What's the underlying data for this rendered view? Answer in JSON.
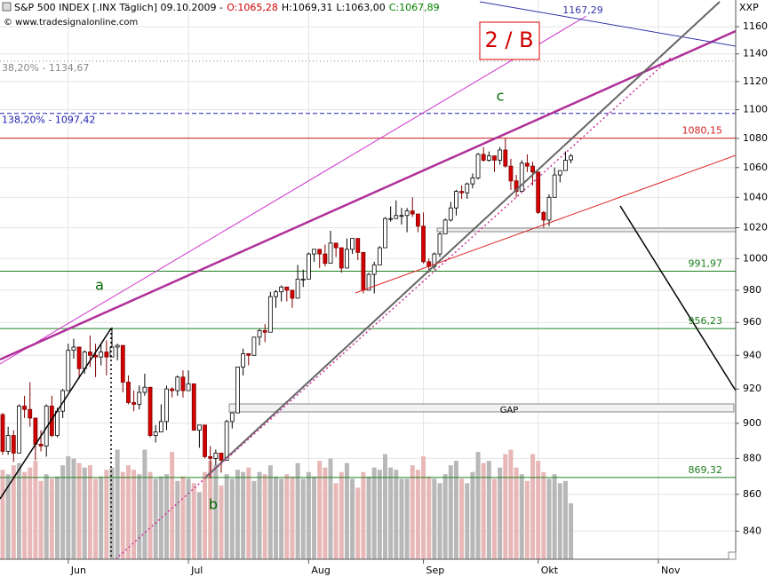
{
  "chart_data": {
    "type": "candlestick",
    "title": "S&P 500 INDEX [.INX Täglich] 09.10.2009 -",
    "ohlc_text": {
      "open": "O:1065,28",
      "high": "H:1069,31",
      "low": "L:1063,00",
      "close": "C:1067,89"
    },
    "source": "© www.tradesignalonline.com",
    "y_axis_label": "XXP",
    "log_scale": true,
    "grid": true,
    "ylim": [
      825,
      1180
    ],
    "yticks": [
      840,
      860,
      880,
      900,
      920,
      940,
      960,
      980,
      1000,
      1020,
      1040,
      1060,
      1080,
      1100,
      1120,
      1140,
      1160
    ],
    "y2lim": [
      0,
      25
    ],
    "up_color": "#ffffff",
    "down_color": "#d40000",
    "volume_up_color": "#b8b8b8",
    "volume_down_color": "#e8b8b8",
    "categories": [
      null,
      null,
      null,
      null,
      null,
      null,
      null,
      null,
      null,
      null,
      null,
      null,
      "Jun",
      null,
      null,
      null,
      null,
      null,
      null,
      null,
      null,
      null,
      null,
      null,
      null,
      null,
      null,
      null,
      null,
      null,
      null,
      null,
      null,
      null,
      "Jul",
      null,
      null,
      null,
      null,
      null,
      null,
      null,
      null,
      null,
      null,
      null,
      null,
      null,
      null,
      null,
      null,
      null,
      null,
      null,
      null,
      null,
      "Aug",
      null,
      null,
      null,
      null,
      null,
      null,
      null,
      null,
      null,
      null,
      null,
      null,
      null,
      null,
      null,
      null,
      null,
      null,
      null,
      null,
      "Sep",
      null,
      null,
      null,
      null,
      null,
      null,
      null,
      null,
      null,
      null,
      null,
      null,
      null,
      null,
      null,
      null,
      null,
      null,
      null,
      null,
      "Okt",
      null,
      null,
      null,
      null,
      null,
      null,
      null,
      null,
      null,
      null,
      null,
      null,
      null,
      null,
      null,
      null,
      null,
      null,
      null,
      null,
      null,
      "Nov"
    ],
    "open": [
      905,
      884,
      893,
      883,
      910,
      908,
      903,
      888,
      887,
      910,
      893,
      907,
      919,
      943,
      945,
      932,
      942,
      940,
      939,
      942,
      939,
      945,
      946,
      924,
      912,
      911,
      918,
      921,
      893,
      895,
      901,
      920,
      919,
      927,
      919,
      923,
      896,
      899,
      881,
      880,
      883,
      879,
      901,
      906,
      933,
      941,
      940,
      951,
      955,
      954,
      976,
      979,
      982,
      980,
      975,
      987,
      987,
      1003,
      1006,
      1003,
      997,
      1010,
      1007,
      994,
      1006,
      1013,
      1004,
      980,
      990,
      996,
      1007,
      1026,
      1026,
      1028,
      1028,
      1031,
      1029,
      1021,
      998,
      995,
      1003,
      1016,
      1025,
      1033,
      1044,
      1043,
      1049,
      1053,
      1069,
      1065,
      1068,
      1065,
      1072,
      1061,
      1051,
      1044,
      1063,
      1061,
      1057,
      1030,
      1025,
      1040,
      1055,
      1058,
      1065.28,
      null,
      null,
      null,
      null,
      null,
      null,
      null,
      null,
      null,
      null,
      null,
      null,
      null,
      null,
      null,
      null
    ],
    "high": [
      906,
      898,
      896,
      911,
      916,
      924,
      903,
      896,
      911,
      916,
      909,
      920,
      947,
      950,
      945,
      943,
      952,
      947,
      947,
      949,
      957,
      947,
      946,
      928,
      919,
      922,
      929,
      921,
      899,
      911,
      922,
      921,
      928,
      931,
      931,
      923,
      899,
      899,
      887,
      885,
      883,
      902,
      906,
      933,
      944,
      941,
      951,
      956,
      959,
      979,
      980,
      983,
      982,
      980,
      996,
      993,
      1004,
      1006,
      1006,
      1009,
      1018,
      1010,
      1007,
      1013,
      1013,
      1013,
      1004,
      991,
      998,
      1008,
      1027,
      1034,
      1038,
      1033,
      1033,
      1040,
      1029,
      1030,
      1000,
      1004,
      1017,
      1026,
      1037,
      1045,
      1048,
      1050,
      1056,
      1070,
      1074,
      1071,
      1068,
      1074,
      1080,
      1066,
      1055,
      1065,
      1069,
      1064,
      1057,
      1031,
      1042,
      1060,
      1058,
      1071,
      1069.31,
      null,
      null,
      null,
      null,
      null,
      null,
      null,
      null,
      null,
      null,
      null,
      null,
      null,
      null,
      null,
      null
    ],
    "low": [
      882,
      882,
      878,
      883,
      903,
      898,
      879,
      884,
      881,
      892,
      892,
      903,
      919,
      938,
      926,
      929,
      933,
      927,
      934,
      928,
      939,
      937,
      918,
      911,
      907,
      908,
      916,
      892,
      889,
      895,
      896,
      915,
      916,
      915,
      919,
      896,
      886,
      880,
      869,
      876,
      872,
      879,
      897,
      906,
      928,
      934,
      940,
      946,
      948,
      954,
      969,
      973,
      973,
      969,
      975,
      982,
      987,
      998,
      994,
      995,
      997,
      1001,
      991,
      994,
      1003,
      999,
      978,
      980,
      978,
      996,
      1007,
      1024,
      1026,
      1022,
      1017,
      1027,
      1017,
      997,
      991,
      993,
      1001,
      1016,
      1024,
      1028,
      1039,
      1039,
      1046,
      1052,
      1064,
      1064,
      1057,
      1062,
      1060,
      1045,
      1040,
      1044,
      1057,
      1048,
      1029,
      1020,
      1021,
      1040,
      1050,
      1058,
      1063,
      null,
      null,
      null,
      null,
      null,
      null,
      null,
      null,
      null,
      null,
      null,
      null,
      null,
      null,
      null,
      null
    ],
    "close": [
      884,
      893,
      883,
      910,
      908,
      903,
      888,
      887,
      910,
      893,
      907,
      919,
      943,
      945,
      932,
      942,
      940,
      939,
      942,
      939,
      945,
      946,
      924,
      912,
      911,
      918,
      921,
      893,
      895,
      901,
      920,
      919,
      927,
      919,
      923,
      896,
      899,
      881,
      880,
      883,
      879,
      901,
      906,
      933,
      941,
      940,
      951,
      955,
      954,
      976,
      979,
      982,
      980,
      975,
      987,
      987,
      1003,
      1006,
      1003,
      997,
      1010,
      1007,
      994,
      1006,
      1013,
      1004,
      980,
      990,
      996,
      1007,
      1026,
      1026,
      1028,
      1028,
      1031,
      1029,
      1021,
      998,
      995,
      1003,
      1016,
      1025,
      1033,
      1044,
      1043,
      1049,
      1053,
      1069,
      1065,
      1068,
      1065,
      1072,
      1061,
      1051,
      1044,
      1063,
      1061,
      1057,
      1030,
      1025,
      1040,
      1055,
      1058,
      1065,
      1067.89,
      null,
      null,
      null,
      null,
      null,
      null,
      null,
      null,
      null,
      null,
      null,
      null,
      null,
      null,
      null,
      null
    ],
    "volume": [
      4.0,
      3.8,
      4.2,
      4.3,
      3.9,
      4.1,
      4.4,
      3.5,
      3.8,
      3.6,
      3.7,
      4.2,
      4.6,
      4.5,
      4.3,
      4.1,
      4.2,
      3.6,
      3.7,
      4.0,
      4.1,
      4.9,
      3.9,
      4.2,
      4.0,
      3.8,
      4.9,
      3.9,
      3.6,
      3.7,
      3.8,
      4.8,
      3.5,
      3.7,
      3.6,
      3.4,
      3.0,
      3.9,
      4.4,
      4.2,
      3.3,
      3.8,
      3.6,
      4.0,
      3.9,
      4.1,
      3.5,
      3.9,
      3.8,
      4.2,
      3.7,
      3.6,
      3.8,
      3.7,
      4.3,
      3.6,
      3.9,
      3.7,
      4.4,
      4.1,
      4.5,
      3.4,
      3.9,
      4.3,
      3.6,
      3.2,
      3.9,
      3.7,
      4.1,
      4.0,
      4.7,
      4.1,
      4.0,
      3.6,
      3.6,
      4.2,
      4.0,
      4.6,
      3.7,
      3.6,
      3.4,
      3.8,
      4.2,
      4.4,
      3.6,
      3.4,
      3.9,
      4.8,
      4.3,
      4.4,
      3.6,
      4.1,
      4.7,
      4.9,
      4.1,
      3.8,
      3.5,
      4.7,
      4.4,
      3.9,
      3.6,
      3.8,
      3.4,
      3.5,
      2.5,
      null,
      null,
      null,
      null,
      null,
      null,
      null,
      null,
      null,
      null,
      null,
      null,
      null,
      null,
      null,
      null
    ],
    "levels": [
      {
        "value": 1134.67,
        "label": "38,20% - 1134,67",
        "color": "#888888",
        "dash": "1 3",
        "label_side": "left"
      },
      {
        "value": 1097.42,
        "label": "138,20% - 1097,42",
        "color": "#2020b0",
        "dash": "5 3",
        "label_side": "left"
      },
      {
        "value": 1080.15,
        "label": "1080,15",
        "color": "#d02020",
        "dash": "none",
        "label_side": "right"
      },
      {
        "value": 991.97,
        "label": "991,97",
        "color": "#208020",
        "dash": "none",
        "label_side": "right"
      },
      {
        "value": 956.23,
        "label": "956,23",
        "color": "#208020",
        "dash": "none",
        "label_side": "right"
      },
      {
        "value": 869.32,
        "label": "869,32",
        "color": "#208020",
        "dash": "none",
        "label_side": "right"
      }
    ],
    "annotations": {
      "wave_a": "a",
      "wave_b": "b",
      "wave_c": "c",
      "count": "2 / B",
      "gap": "GAP",
      "channel": "1167,29"
    }
  }
}
